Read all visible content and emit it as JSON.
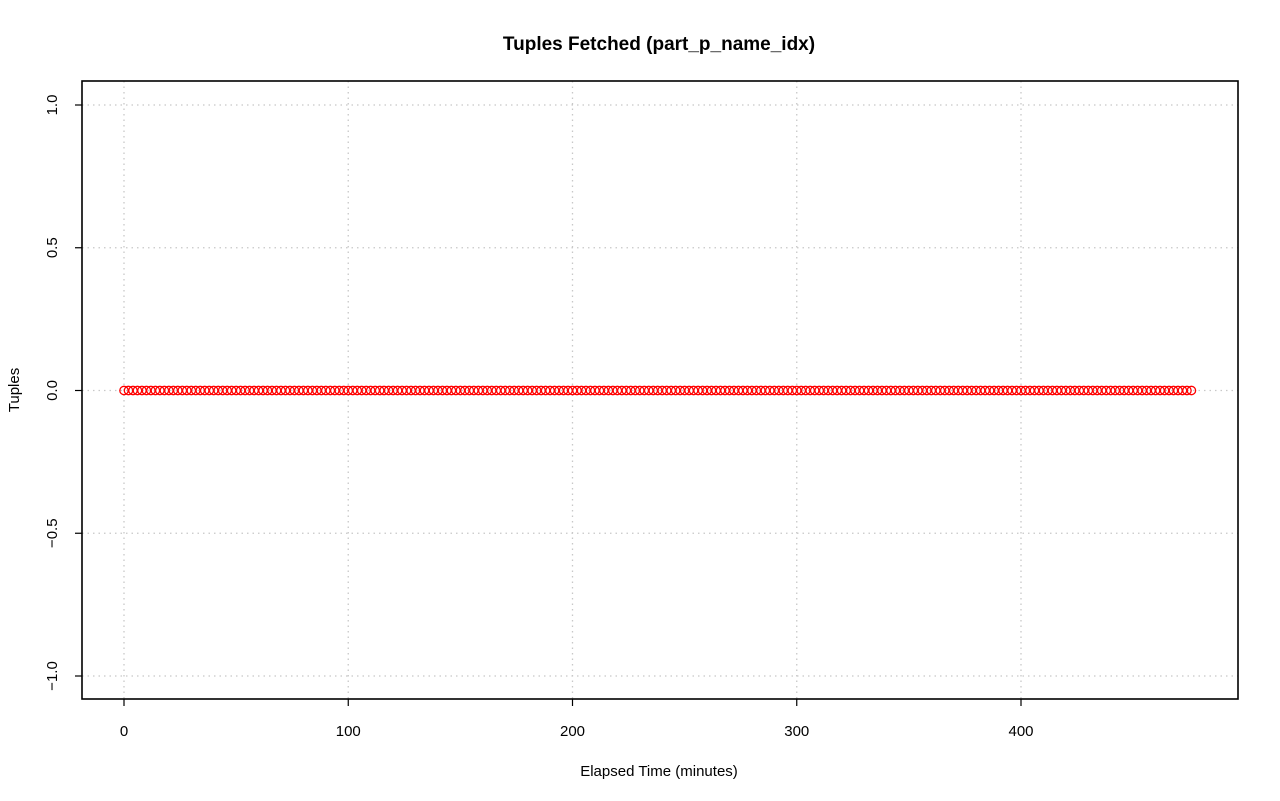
{
  "chart_data": {
    "type": "scatter",
    "title": "Tuples Fetched (part_p_name_idx)",
    "xlabel": "Elapsed Time (minutes)",
    "ylabel": "Tuples",
    "xlim": [
      0,
      476
    ],
    "ylim": [
      -1.0,
      1.0
    ],
    "xticks": [
      0,
      100,
      200,
      300,
      400
    ],
    "yticks": [
      -1.0,
      -0.5,
      0.0,
      0.5,
      1.0
    ],
    "xtick_labels": [
      "0",
      "100",
      "200",
      "300",
      "400"
    ],
    "ytick_labels": [
      "−1.0",
      "−0.5",
      "0.0",
      "0.5",
      "1.0"
    ],
    "grid": true,
    "series": [
      {
        "color": "#ff0000",
        "x_start": 0,
        "x_end": 476,
        "x_step": 2,
        "y_constant": 0.0
      }
    ]
  }
}
